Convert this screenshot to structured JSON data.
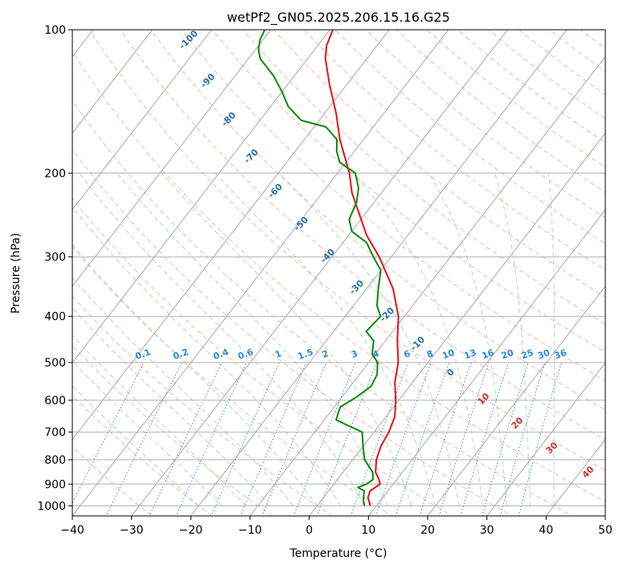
{
  "chart_data": {
    "type": "line",
    "subtype": "skew-t log-p diagram",
    "title": "wetPf2_GN05.2025.206.15.16.G25",
    "xlabel": "Temperature (°C)",
    "ylabel": "Pressure (hPa)",
    "xlim": [
      -40,
      50
    ],
    "ylim": [
      1050,
      100
    ],
    "y_scale": "log",
    "x_ticks": [
      -40,
      -30,
      -20,
      -10,
      0,
      10,
      20,
      30,
      40,
      50
    ],
    "y_ticks": [
      1000,
      900,
      800,
      700,
      600,
      500,
      400,
      300,
      200,
      100
    ],
    "grid": true,
    "series": [
      {
        "color": "#e8101a",
        "points": [
          [
            1000,
            9.0
          ],
          [
            960,
            7.5
          ],
          [
            930,
            7.0
          ],
          [
            900,
            7.8
          ],
          [
            880,
            7.0
          ],
          [
            850,
            5.5
          ],
          [
            800,
            4.0
          ],
          [
            750,
            3.0
          ],
          [
            700,
            2.5
          ],
          [
            650,
            1.5
          ],
          [
            600,
            -0.5
          ],
          [
            550,
            -3.0
          ],
          [
            500,
            -5.0
          ],
          [
            450,
            -8.0
          ],
          [
            400,
            -11.0
          ],
          [
            350,
            -15.5
          ],
          [
            300,
            -22.0
          ],
          [
            270,
            -27.0
          ],
          [
            250,
            -30.0
          ],
          [
            220,
            -35.0
          ],
          [
            200,
            -38.0
          ],
          [
            170,
            -44.0
          ],
          [
            150,
            -48.0
          ],
          [
            130,
            -53.0
          ],
          [
            115,
            -57.0
          ],
          [
            108,
            -58.5
          ],
          [
            100,
            -59.5
          ]
        ]
      },
      {
        "color": "#0a8a0a",
        "points": [
          [
            1000,
            8.0
          ],
          [
            970,
            7.0
          ],
          [
            950,
            6.5
          ],
          [
            930,
            6.0
          ],
          [
            915,
            4.5
          ],
          [
            900,
            5.5
          ],
          [
            880,
            6.0
          ],
          [
            850,
            5.0
          ],
          [
            800,
            2.0
          ],
          [
            750,
            0.0
          ],
          [
            700,
            -2.0
          ],
          [
            660,
            -8.0
          ],
          [
            620,
            -9.0
          ],
          [
            590,
            -7.5
          ],
          [
            560,
            -6.5
          ],
          [
            530,
            -7.0
          ],
          [
            500,
            -8.5
          ],
          [
            480,
            -10.5
          ],
          [
            450,
            -12.0
          ],
          [
            430,
            -14.5
          ],
          [
            400,
            -14.0
          ],
          [
            380,
            -16.0
          ],
          [
            350,
            -18.0
          ],
          [
            320,
            -20.0
          ],
          [
            300,
            -23.0
          ],
          [
            280,
            -26.0
          ],
          [
            265,
            -30.0
          ],
          [
            250,
            -32.0
          ],
          [
            230,
            -33.0
          ],
          [
            215,
            -34.5
          ],
          [
            200,
            -37.0
          ],
          [
            190,
            -41.0
          ],
          [
            180,
            -43.0
          ],
          [
            170,
            -44.5
          ],
          [
            160,
            -48.0
          ],
          [
            155,
            -53.0
          ],
          [
            145,
            -57.0
          ],
          [
            135,
            -60.0
          ],
          [
            125,
            -63.5
          ],
          [
            115,
            -68.0
          ],
          [
            110,
            -69.5
          ],
          [
            105,
            -70.5
          ],
          [
            100,
            -71.0
          ]
        ]
      }
    ],
    "dry_adiabat_labels": [
      "-100",
      "-90",
      "-80",
      "-70",
      "-60",
      "-50",
      "-40",
      "-30",
      "-20",
      "-10"
    ],
    "mixing_ratio_labels": [
      "0.1",
      "0.2",
      "0.4",
      "0.6",
      "1",
      "1.5",
      "2",
      "3",
      "4",
      "6",
      "8",
      "10",
      "13",
      "16",
      "20",
      "25",
      "30",
      "36"
    ],
    "moist_adiabat_labels": [
      "0",
      "10",
      "20",
      "30",
      "40"
    ]
  }
}
